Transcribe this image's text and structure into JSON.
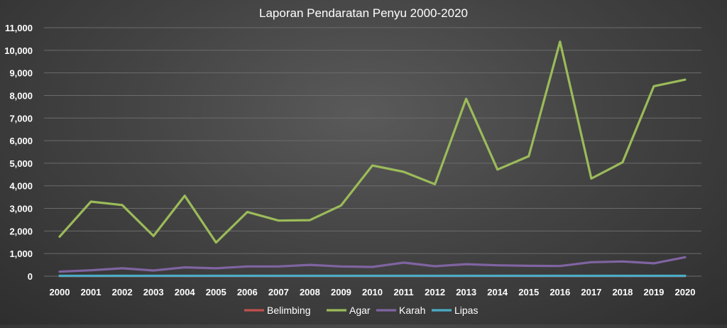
{
  "chart_data": {
    "type": "line",
    "title": "Laporan Pendaratan Penyu 2000-2020",
    "xlabel": "",
    "ylabel": "",
    "categories": [
      "2000",
      "2001",
      "2002",
      "2003",
      "2004",
      "2005",
      "2006",
      "2007",
      "2008",
      "2009",
      "2010",
      "2011",
      "2012",
      "2013",
      "2014",
      "2015",
      "2016",
      "2017",
      "2018",
      "2019",
      "2020"
    ],
    "ylim": [
      0,
      11000
    ],
    "yticks": [
      0,
      1000,
      2000,
      3000,
      4000,
      5000,
      6000,
      7000,
      8000,
      9000,
      10000,
      11000
    ],
    "ytick_labels": [
      "0",
      "1,000",
      "2,000",
      "3,000",
      "4,000",
      "5,000",
      "6,000",
      "7,000",
      "8,000",
      "9,000",
      "10,000",
      "11,000"
    ],
    "grid": true,
    "legend_position": "bottom",
    "series": [
      {
        "name": "Belimbing",
        "color": "#c0504d",
        "values": [
          5,
          5,
          5,
          5,
          5,
          5,
          5,
          5,
          5,
          5,
          5,
          5,
          5,
          5,
          5,
          5,
          5,
          5,
          5,
          5,
          5
        ]
      },
      {
        "name": "Agar",
        "color": "#9bbb59",
        "values": [
          1750,
          3300,
          3150,
          1780,
          3560,
          1490,
          2840,
          2460,
          2480,
          3130,
          4900,
          4620,
          4070,
          7850,
          4720,
          5310,
          10380,
          4320,
          5040,
          8410,
          8700
        ]
      },
      {
        "name": "Karah",
        "color": "#8064a2",
        "values": [
          200,
          260,
          350,
          250,
          390,
          350,
          430,
          430,
          500,
          430,
          410,
          600,
          440,
          530,
          480,
          460,
          450,
          620,
          650,
          570,
          840
        ]
      },
      {
        "name": "Lipas",
        "color": "#4bacc6",
        "values": [
          15,
          15,
          15,
          15,
          15,
          15,
          15,
          15,
          15,
          15,
          15,
          15,
          15,
          15,
          15,
          15,
          15,
          15,
          15,
          15,
          15
        ]
      }
    ]
  }
}
